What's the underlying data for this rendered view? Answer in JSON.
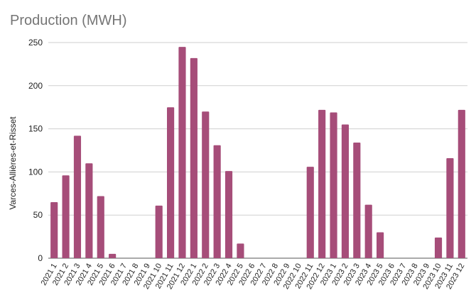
{
  "chart_data": {
    "type": "bar",
    "title": "Production (MWH)",
    "ylabel": "Varces-Allières-et-Risset",
    "xlabel": "",
    "ylim": [
      0,
      250
    ],
    "yticks": [
      0,
      50,
      100,
      150,
      200,
      250
    ],
    "grid": true,
    "bar_color": "#a64d79",
    "categories": [
      "2021 1",
      "2021 2",
      "2021 3",
      "2021 4",
      "2021 5",
      "2021 6",
      "2021 7",
      "2021 8",
      "2021 9",
      "2021 10",
      "2021 11",
      "2021 12",
      "2022 1",
      "2022 2",
      "2022 3",
      "2022 4",
      "2022 5",
      "2022 6",
      "2022 7",
      "2022 8",
      "2022 9",
      "2022 10",
      "2022 11",
      "2022 12",
      "2023 1",
      "2023 2",
      "2023 3",
      "2023 4",
      "2023 5",
      "2023 6",
      "2023 7",
      "2023 8",
      "2023 9",
      "2023 10",
      "2023 11",
      "2023 12"
    ],
    "values": [
      65,
      96,
      142,
      110,
      72,
      5,
      0,
      0,
      0,
      61,
      175,
      245,
      232,
      170,
      131,
      101,
      17,
      0,
      0,
      0,
      0,
      0,
      106,
      172,
      169,
      155,
      134,
      62,
      30,
      0,
      0,
      0,
      0,
      24,
      116,
      172
    ]
  }
}
